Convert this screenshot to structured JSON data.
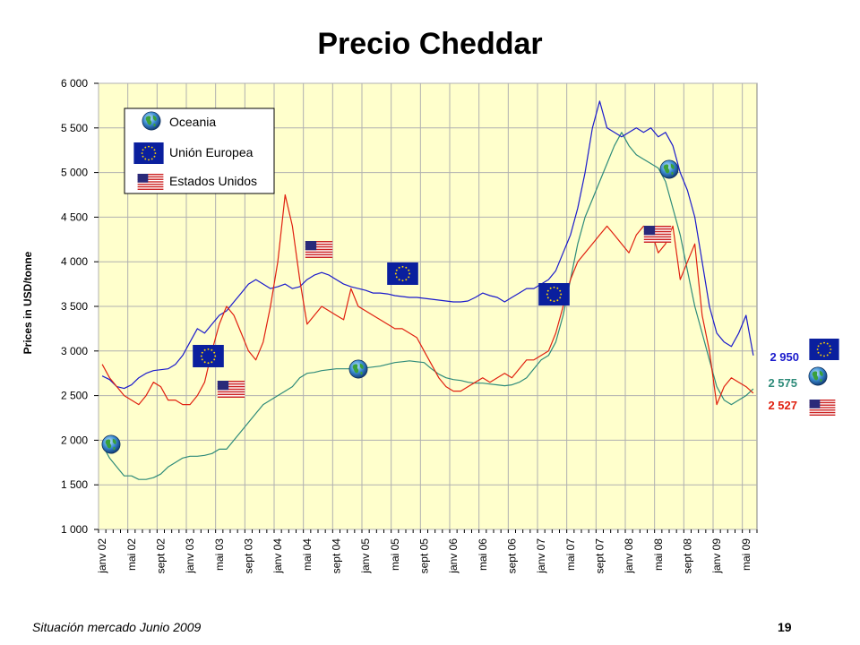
{
  "chart_data": {
    "type": "line",
    "title": "Precio Cheddar",
    "xlabel": "",
    "ylabel": "Prices in USD/tonne",
    "ylim": [
      1000,
      6000
    ],
    "yticks": [
      "1 000",
      "1 500",
      "2 000",
      "2 500",
      "3 000",
      "3 500",
      "4 000",
      "4 500",
      "5 000",
      "5 500",
      "6 000"
    ],
    "grid": true,
    "legend_position": "top-left",
    "x_ticks": [
      "janv 02",
      "mai 02",
      "sept 02",
      "janv 03",
      "mai 03",
      "sept 03",
      "janv 04",
      "mai 04",
      "sept 04",
      "janv 05",
      "mai 05",
      "sept 05",
      "janv 06",
      "mai 06",
      "sept 06",
      "janv 07",
      "mai 07",
      "sept 07",
      "janv 08",
      "mai 08",
      "sept 08",
      "janv 09",
      "mai 09"
    ],
    "x_months": [
      "2002-01",
      "2002-02",
      "2002-03",
      "2002-04",
      "2002-05",
      "2002-06",
      "2002-07",
      "2002-08",
      "2002-09",
      "2002-10",
      "2002-11",
      "2002-12",
      "2003-01",
      "2003-02",
      "2003-03",
      "2003-04",
      "2003-05",
      "2003-06",
      "2003-07",
      "2003-08",
      "2003-09",
      "2003-10",
      "2003-11",
      "2003-12",
      "2004-01",
      "2004-02",
      "2004-03",
      "2004-04",
      "2004-05",
      "2004-06",
      "2004-07",
      "2004-08",
      "2004-09",
      "2004-10",
      "2004-11",
      "2004-12",
      "2005-01",
      "2005-02",
      "2005-03",
      "2005-04",
      "2005-05",
      "2005-06",
      "2005-07",
      "2005-08",
      "2005-09",
      "2005-10",
      "2005-11",
      "2005-12",
      "2006-01",
      "2006-02",
      "2006-03",
      "2006-04",
      "2006-05",
      "2006-06",
      "2006-07",
      "2006-08",
      "2006-09",
      "2006-10",
      "2006-11",
      "2006-12",
      "2007-01",
      "2007-02",
      "2007-03",
      "2007-04",
      "2007-05",
      "2007-06",
      "2007-07",
      "2007-08",
      "2007-09",
      "2007-10",
      "2007-11",
      "2007-12",
      "2008-01",
      "2008-02",
      "2008-03",
      "2008-04",
      "2008-05",
      "2008-06",
      "2008-07",
      "2008-08",
      "2008-09",
      "2008-10",
      "2008-11",
      "2008-12",
      "2009-01",
      "2009-02",
      "2009-03",
      "2009-04",
      "2009-05",
      "2009-06"
    ],
    "series": [
      {
        "name": "Oceania",
        "color": "#2e8b7a",
        "icon": "globe-icon",
        "end_value": "2 575",
        "values": [
          1950,
          1800,
          1700,
          1600,
          1600,
          1560,
          1560,
          1580,
          1620,
          1700,
          1750,
          1800,
          1820,
          1820,
          1830,
          1850,
          1900,
          1900,
          2000,
          2100,
          2200,
          2300,
          2400,
          2450,
          2500,
          2550,
          2600,
          2700,
          2750,
          2760,
          2780,
          2790,
          2800,
          2800,
          2800,
          2810,
          2810,
          2820,
          2830,
          2850,
          2870,
          2880,
          2890,
          2880,
          2870,
          2800,
          2740,
          2700,
          2680,
          2670,
          2650,
          2640,
          2640,
          2630,
          2620,
          2610,
          2620,
          2650,
          2700,
          2800,
          2900,
          2950,
          3100,
          3400,
          3800,
          4200,
          4500,
          4700,
          4900,
          5100,
          5300,
          5450,
          5300,
          5200,
          5150,
          5100,
          5050,
          4900,
          4600,
          4300,
          3900,
          3500,
          3200,
          2900,
          2600,
          2450,
          2400,
          2450,
          2500,
          2575
        ]
      },
      {
        "name": "Unión Europea",
        "color": "#1a1acc",
        "icon": "eu-flag-icon",
        "end_value": "2 950",
        "values": [
          2720,
          2680,
          2600,
          2580,
          2620,
          2700,
          2750,
          2780,
          2790,
          2800,
          2850,
          2950,
          3100,
          3250,
          3200,
          3300,
          3400,
          3450,
          3550,
          3650,
          3750,
          3800,
          3750,
          3700,
          3720,
          3750,
          3700,
          3720,
          3800,
          3850,
          3880,
          3850,
          3800,
          3750,
          3720,
          3700,
          3680,
          3650,
          3650,
          3640,
          3620,
          3610,
          3600,
          3600,
          3590,
          3580,
          3570,
          3560,
          3550,
          3550,
          3560,
          3600,
          3650,
          3620,
          3600,
          3550,
          3600,
          3650,
          3700,
          3700,
          3750,
          3800,
          3900,
          4100,
          4300,
          4600,
          5000,
          5500,
          5800,
          5500,
          5450,
          5400,
          5450,
          5500,
          5450,
          5500,
          5400,
          5450,
          5300,
          5000,
          4800,
          4500,
          4000,
          3500,
          3200,
          3100,
          3050,
          3200,
          3400,
          2950
        ]
      },
      {
        "name": "Estados Unidos",
        "color": "#e02010",
        "icon": "us-flag-icon",
        "end_value": "2 527",
        "values": [
          2850,
          2700,
          2600,
          2500,
          2450,
          2400,
          2500,
          2650,
          2600,
          2450,
          2450,
          2400,
          2400,
          2500,
          2650,
          3000,
          3300,
          3500,
          3400,
          3200,
          3000,
          2900,
          3100,
          3500,
          4000,
          4750,
          4400,
          3800,
          3300,
          3400,
          3500,
          3450,
          3400,
          3350,
          3700,
          3500,
          3450,
          3400,
          3350,
          3300,
          3250,
          3250,
          3200,
          3150,
          3000,
          2850,
          2700,
          2600,
          2550,
          2550,
          2600,
          2650,
          2700,
          2650,
          2700,
          2750,
          2700,
          2800,
          2900,
          2900,
          2950,
          3000,
          3200,
          3500,
          3800,
          4000,
          4100,
          4200,
          4300,
          4400,
          4300,
          4200,
          4100,
          4300,
          4400,
          4350,
          4100,
          4200,
          4400,
          3800,
          4000,
          4200,
          3400,
          3000,
          2400,
          2600,
          2700,
          2650,
          2600,
          2527
        ]
      }
    ]
  },
  "footer": {
    "left": "Situación mercado Junio 2009",
    "right": "19"
  }
}
